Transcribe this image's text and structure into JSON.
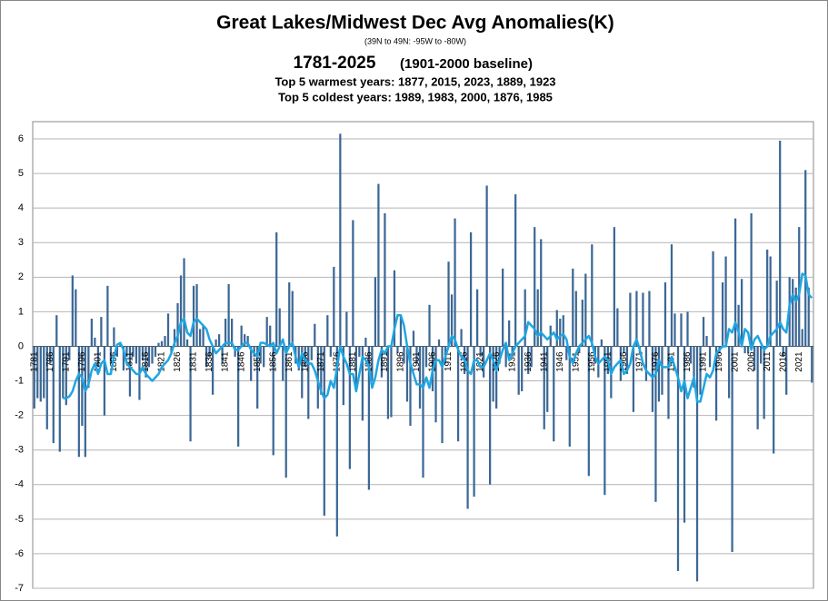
{
  "chart_data": {
    "type": "bar",
    "title": "Great Lakes/Midwest Dec Avg Anomalies(K)",
    "subtitle": "(39N to 49N: -95W to -80W)",
    "period": "1781-2025",
    "baseline": "(1901-2000 baseline)",
    "annotations": [
      "Top 5 warmest years: 1877, 2015, 2023, 1889, 1923",
      "Top 5 coldest years: 1989, 1983, 2000, 1876, 1985"
    ],
    "categories": [
      "1781",
      null,
      null,
      null,
      null,
      "1786",
      null,
      null,
      null,
      null,
      "1791",
      null,
      null,
      null,
      null,
      "1796",
      null,
      null,
      null,
      null,
      "1801",
      null,
      null,
      null,
      null,
      "1806",
      null,
      null,
      null,
      null,
      "1811",
      null,
      null,
      null,
      null,
      "1816",
      null,
      null,
      null,
      null,
      "1821",
      null,
      null,
      null,
      null,
      "1826",
      null,
      null,
      null,
      null,
      "1831",
      null,
      null,
      null,
      null,
      "1836",
      null,
      null,
      null,
      null,
      "1841",
      null,
      null,
      null,
      null,
      "1846",
      null,
      null,
      null,
      null,
      "1851",
      null,
      null,
      null,
      null,
      "1856",
      null,
      null,
      null,
      null,
      "1861",
      null,
      null,
      null,
      null,
      "1866",
      null,
      null,
      null,
      null,
      "1871",
      null,
      null,
      null,
      null,
      "1876",
      null,
      null,
      null,
      null,
      "1881",
      null,
      null,
      null,
      null,
      "1886",
      null,
      null,
      null,
      null,
      "1891",
      null,
      null,
      null,
      null,
      "1896",
      null,
      null,
      null,
      null,
      "1901",
      null,
      null,
      null,
      null,
      "1906",
      null,
      null,
      null,
      null,
      "1911",
      null,
      null,
      null,
      null,
      "1916",
      null,
      null,
      null,
      null,
      "1921",
      null,
      null,
      null,
      null,
      "1926",
      null,
      null,
      null,
      null,
      "1931",
      null,
      null,
      null,
      null,
      "1936",
      null,
      null,
      null,
      null,
      "1941",
      null,
      null,
      null,
      null,
      "1946",
      null,
      null,
      null,
      null,
      "1951",
      null,
      null,
      null,
      null,
      "1956",
      null,
      null,
      null,
      null,
      "1961",
      null,
      null,
      null,
      null,
      "1966",
      null,
      null,
      null,
      null,
      "1971",
      null,
      null,
      null,
      null,
      "1976",
      null,
      null,
      null,
      null,
      "1981",
      null,
      null,
      null,
      null,
      "1986",
      null,
      null,
      null,
      null,
      "1991",
      null,
      null,
      null,
      null,
      "1996",
      null,
      null,
      null,
      null,
      "2001",
      null,
      null,
      null,
      null,
      "2006",
      null,
      null,
      null,
      null,
      "2011",
      null,
      null,
      null,
      null,
      "2016",
      null,
      null,
      null,
      null,
      "2021",
      null,
      null,
      null,
      null
    ],
    "series": [
      {
        "type": "bar",
        "color": "#3b6896",
        "values": [
          -1.8,
          -1.5,
          -1.6,
          -1.5,
          -2.4,
          -0.5,
          -2.8,
          0.9,
          -3.05,
          -1.5,
          -1.7,
          -0.4,
          2.05,
          1.65,
          -3.2,
          -2.3,
          -3.2,
          -1.2,
          0.8,
          0.25,
          -0.6,
          0.85,
          -2.0,
          1.75,
          -0.5,
          0.55,
          -0.3,
          0.1,
          -0.7,
          -0.3,
          -1.45,
          -0.3,
          -0.5,
          -1.55,
          -0.4,
          -0.9,
          -0.6,
          -0.5,
          -0.3,
          0.1,
          0.15,
          0.3,
          0.95,
          -0.2,
          0.5,
          1.25,
          2.05,
          2.55,
          0.2,
          -2.75,
          1.75,
          1.8,
          0.5,
          0.6,
          -0.6,
          -0.3,
          -1.4,
          0.2,
          0.35,
          -0.5,
          0.8,
          1.8,
          0.8,
          -0.3,
          -2.9,
          0.6,
          0.35,
          0.3,
          -1.0,
          -0.3,
          -1.8,
          -0.5,
          -0.6,
          0.85,
          0.6,
          -3.15,
          3.3,
          1.1,
          -1.0,
          -3.8,
          1.85,
          1.6,
          -0.5,
          -0.7,
          -1.5,
          -0.6,
          -2.1,
          -0.4,
          0.65,
          -1.8,
          -1.4,
          -4.9,
          0.9,
          -0.3,
          2.3,
          -5.5,
          6.15,
          -1.7,
          1.0,
          -3.55,
          3.65,
          -1.25,
          -0.3,
          -2.15,
          0.25,
          -4.15,
          -1.0,
          2.0,
          4.7,
          -0.9,
          3.85,
          -2.1,
          -2.05,
          2.2,
          -0.2,
          0.9,
          -0.5,
          -1.6,
          -2.3,
          0.45,
          -0.5,
          -1.8,
          -3.8,
          -0.6,
          1.2,
          -1.3,
          -2.2,
          0.2,
          -2.8,
          -0.5,
          2.45,
          1.5,
          3.7,
          -2.75,
          0.5,
          -0.8,
          -4.7,
          3.3,
          -4.35,
          1.65,
          -0.3,
          -0.9,
          4.65,
          -4.0,
          -1.6,
          -1.8,
          -0.5,
          2.25,
          -0.6,
          0.75,
          -0.3,
          4.4,
          -1.4,
          -1.3,
          1.65,
          -0.8,
          -0.6,
          3.45,
          1.65,
          3.1,
          -2.4,
          -1.9,
          0.6,
          -2.75,
          1.05,
          0.8,
          0.9,
          -0.4,
          -2.9,
          2.25,
          1.6,
          -0.2,
          1.35,
          2.1,
          -3.75,
          2.95,
          -0.5,
          -0.9,
          0.2,
          -4.3,
          -0.8,
          -1.5,
          3.45,
          1.1,
          -1.0,
          -0.2,
          -0.8,
          1.55,
          -1.9,
          1.6,
          -0.2,
          1.55,
          -1.0,
          1.6,
          -1.9,
          -4.5,
          -1.6,
          -1.4,
          1.85,
          -2.1,
          2.95,
          0.95,
          -6.5,
          0.95,
          -5.1,
          1.0,
          -0.5,
          -1.2,
          -6.8,
          -1.4,
          0.85,
          0.3,
          -0.6,
          2.75,
          -2.15,
          -0.2,
          1.85,
          2.6,
          -1.5,
          -5.95,
          3.7,
          1.2,
          1.95,
          -0.2,
          -0.2,
          3.85,
          -0.7,
          -2.4,
          -0.5,
          -2.1,
          2.8,
          2.6,
          -3.1,
          1.9,
          5.95,
          -0.3,
          -1.4,
          2.0,
          1.95,
          1.7,
          3.45,
          0.5,
          5.1,
          1.7,
          -1.05
        ]
      },
      {
        "type": "line",
        "color": "#1ea6e3",
        "values": [
          null,
          null,
          null,
          null,
          null,
          null,
          null,
          null,
          null,
          -1.5,
          -1.5,
          -1.45,
          -1.3,
          -1.0,
          -0.8,
          -0.9,
          -1.3,
          -1.1,
          -0.7,
          -0.5,
          -0.8,
          -0.5,
          -0.4,
          -0.8,
          -0.8,
          -0.3,
          0.05,
          0.1,
          -0.1,
          -0.5,
          -0.6,
          -0.7,
          -0.8,
          -0.8,
          -0.6,
          -0.8,
          -0.9,
          -1.0,
          -0.9,
          -0.8,
          -0.6,
          -0.5,
          -0.4,
          -0.2,
          0.1,
          0.3,
          0.7,
          0.8,
          0.4,
          0.3,
          0.7,
          0.8,
          0.7,
          0.6,
          0.5,
          0.2,
          0.0,
          -0.2,
          -0.1,
          0.0,
          0.1,
          0.1,
          0.1,
          -0.1,
          -0.1,
          0.0,
          0.1,
          0.1,
          -0.1,
          -0.2,
          -0.3,
          0.1,
          0.1,
          0.05,
          0.0,
          0.1,
          -0.2,
          0.0,
          0.2,
          -0.2,
          0.0,
          0.1,
          -0.3,
          -0.6,
          -0.2,
          -0.4,
          -0.5,
          -0.5,
          -0.7,
          -1.0,
          -1.3,
          -1.5,
          -1.4,
          -1.0,
          -1.2,
          -0.6,
          0.0,
          -0.3,
          -0.5,
          -0.8,
          -0.8,
          -1.3,
          -0.8,
          -0.3,
          -0.4,
          -0.6,
          -1.2,
          -0.9,
          -0.4,
          -0.1,
          -0.2,
          0.0,
          0.0,
          0.5,
          0.9,
          0.9,
          0.6,
          0.0,
          -0.5,
          -0.8,
          -1.1,
          -1.1,
          -1.2,
          -0.9,
          -1.2,
          -0.7,
          -0.4,
          -0.4,
          -0.6,
          -0.3,
          0.0,
          0.3,
          0.2,
          -0.1,
          -0.3,
          -0.4,
          -0.7,
          -0.8,
          -0.4,
          -0.4,
          -0.6,
          -0.6,
          -0.4,
          -0.2,
          -0.4,
          -0.7,
          -0.4,
          -0.1,
          0.1,
          -0.4,
          -0.2,
          0.0,
          0.1,
          0.2,
          0.3,
          0.7,
          0.6,
          0.5,
          0.3,
          0.4,
          0.3,
          0.2,
          0.3,
          0.4,
          0.2,
          0.3,
          0.35,
          0.2,
          -0.3,
          -0.5,
          -0.2,
          0.0,
          0.1,
          0.2,
          0.3,
          0.1,
          -0.3,
          -0.5,
          -0.4,
          -0.3,
          -0.4,
          -0.8,
          -0.6,
          -0.5,
          -0.4,
          -0.8,
          -0.7,
          -0.5,
          0.0,
          0.2,
          -0.1,
          -0.5,
          -0.7,
          -0.8,
          -0.9,
          -0.8,
          -0.4,
          -0.6,
          -0.6,
          -0.6,
          -0.3,
          -0.6,
          -0.9,
          -1.3,
          -1.0,
          -1.5,
          -1.2,
          -0.9,
          -1.6,
          -1.6,
          -1.2,
          -0.8,
          -0.9,
          -0.7,
          -0.2,
          -0.1,
          0.0,
          0.0,
          0.5,
          0.4,
          0.7,
          0.4,
          0.0,
          0.5,
          0.4,
          -0.1,
          0.2,
          0.3,
          0.1,
          -0.1,
          0.0,
          0.3,
          0.4,
          0.5,
          0.7,
          0.5,
          0.4,
          1.2,
          1.5,
          1.3,
          1.5,
          2.1,
          2.05,
          1.5,
          1.4
        ]
      }
    ],
    "ylim": [
      -7,
      6.5
    ],
    "yticks": [
      -7,
      -6,
      -5,
      -4,
      -3,
      -2,
      -1,
      0,
      1,
      2,
      3,
      4,
      5,
      6
    ],
    "grid": true
  }
}
